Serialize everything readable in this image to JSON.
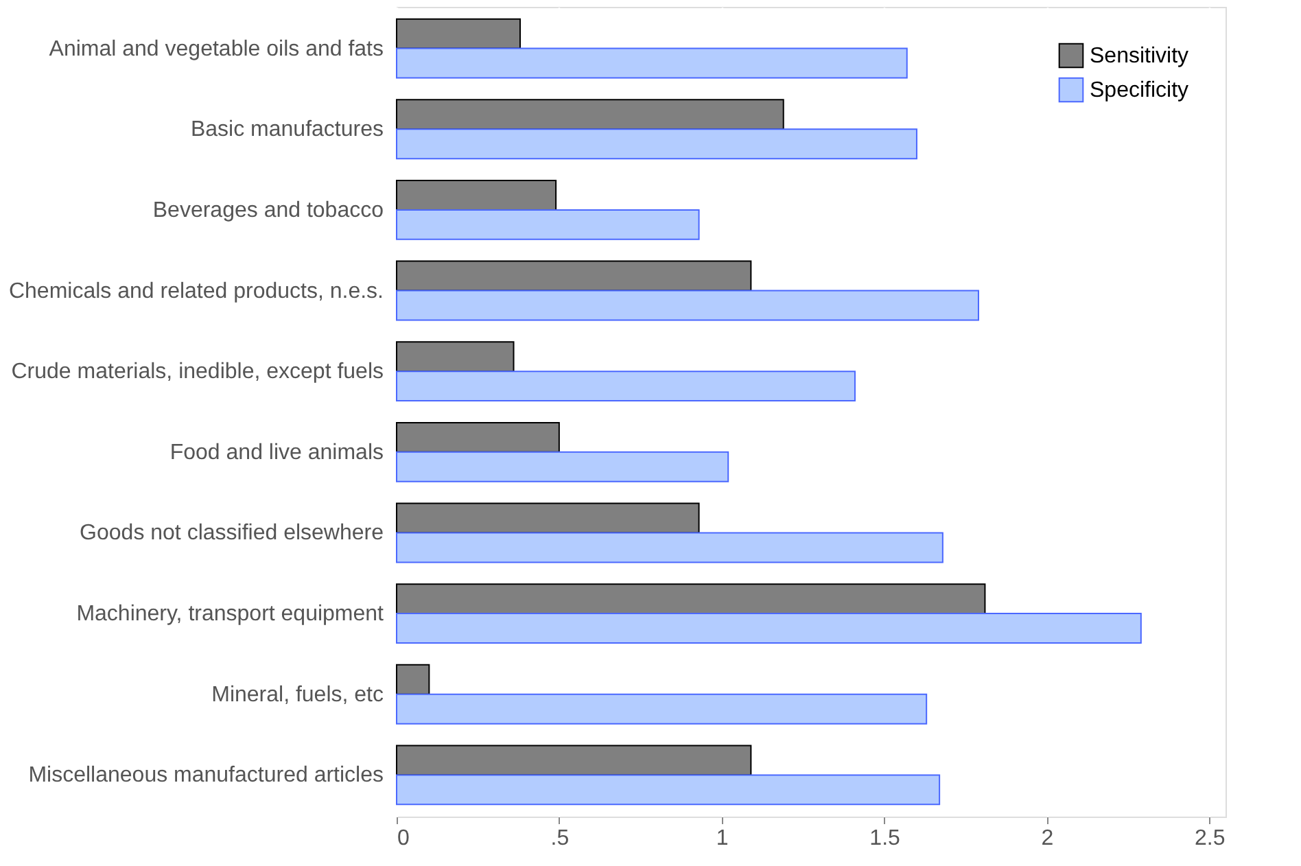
{
  "chart_data": {
    "type": "bar",
    "orientation": "horizontal",
    "categories": [
      "Animal and vegetable oils and fats",
      "Basic manufactures",
      "Beverages and tobacco",
      "Chemicals and related products, n.e.s.",
      "Crude materials, inedible, except fuels",
      "Food and live animals",
      "Goods not classified elsewhere",
      "Machinery, transport equipment",
      "Mineral, fuels, etc",
      "Miscellaneous manufactured articles"
    ],
    "series": [
      {
        "name": "Sensitivity",
        "color": "#808080",
        "values": [
          0.38,
          1.19,
          0.49,
          1.09,
          0.36,
          0.5,
          0.93,
          1.81,
          0.1,
          1.09
        ]
      },
      {
        "name": "Specificity",
        "color": "#b3ccff",
        "values": [
          1.57,
          1.6,
          0.93,
          1.79,
          1.41,
          1.02,
          1.68,
          2.29,
          1.63,
          1.67
        ]
      }
    ],
    "xlim": [
      0,
      2.55
    ],
    "xticks": [
      0,
      {
        "value": 0.5,
        "label": ".5"
      },
      1,
      1.5,
      2,
      2.5
    ],
    "grid": "x",
    "legend": "top right"
  }
}
